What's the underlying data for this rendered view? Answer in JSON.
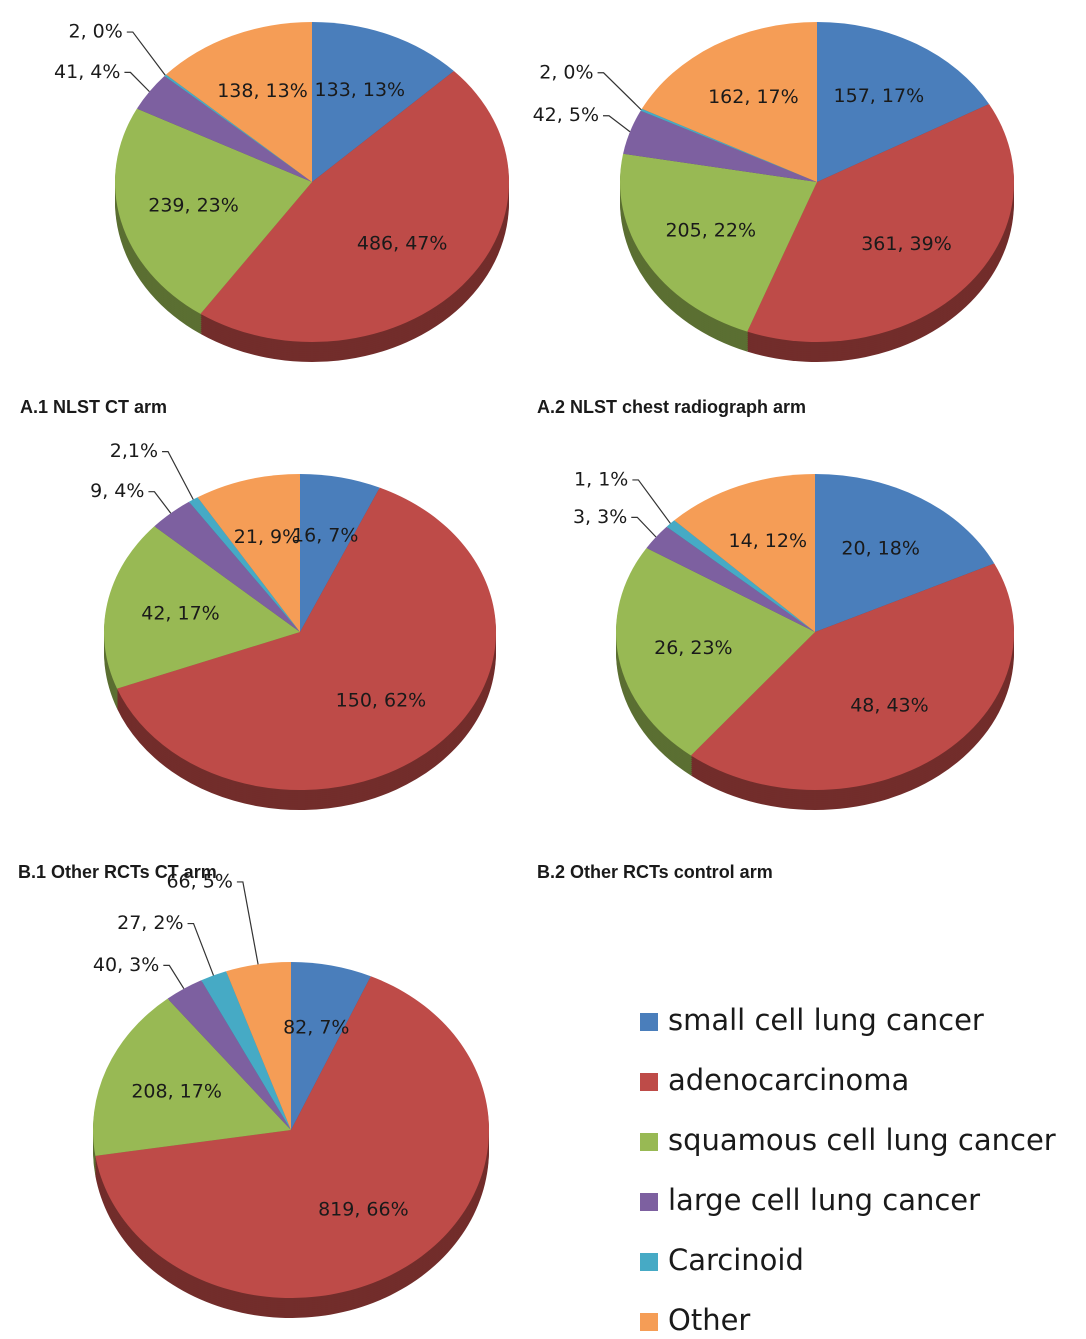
{
  "legend": {
    "labels": [
      "small cell lung cancer",
      "adenocarcinoma",
      "squamous cell lung cancer",
      "large cell lung cancer",
      "Carcinoid",
      "Other"
    ],
    "colors": [
      "#4a7ebb",
      "#be4b48",
      "#98b954",
      "#7d60a0",
      "#46aac5",
      "#f59d56"
    ]
  },
  "chart_data": [
    {
      "type": "pie",
      "title": "A.1 NLST CT arm",
      "values": [
        133,
        486,
        239,
        41,
        2,
        138
      ],
      "value_labels": [
        "133, 13%",
        "486, 47%",
        "239, 23%",
        "41, 4%",
        "2, 0%",
        "138, 13%"
      ]
    },
    {
      "type": "pie",
      "title": "A.2 NLST chest radiograph arm",
      "values": [
        157,
        361,
        205,
        42,
        2,
        162
      ],
      "value_labels": [
        "157, 17%",
        "361, 39%",
        "205, 22%",
        "42, 5%",
        "2, 0%",
        "162, 17%"
      ]
    },
    {
      "type": "pie",
      "title": "B.1 Other RCTs CT arm",
      "values": [
        16,
        150,
        42,
        9,
        2,
        21
      ],
      "value_labels": [
        "16, 7%",
        "150, 62%",
        "42, 17%",
        "9, 4%",
        "2,1%",
        "21, 9%"
      ]
    },
    {
      "type": "pie",
      "title": "B.2 Other RCTs control arm",
      "values": [
        20,
        48,
        26,
        3,
        1,
        14
      ],
      "value_labels": [
        "20, 18%",
        "48, 43%",
        "26, 23%",
        "3, 3%",
        "1, 1%",
        "14, 12%"
      ]
    },
    {
      "type": "pie",
      "values": [
        82,
        819,
        208,
        40,
        27,
        66
      ],
      "value_labels": [
        "82, 7%",
        "819, 66%",
        "208, 17%",
        "40, 3%",
        "27, 2%",
        "66, 5%"
      ]
    }
  ]
}
